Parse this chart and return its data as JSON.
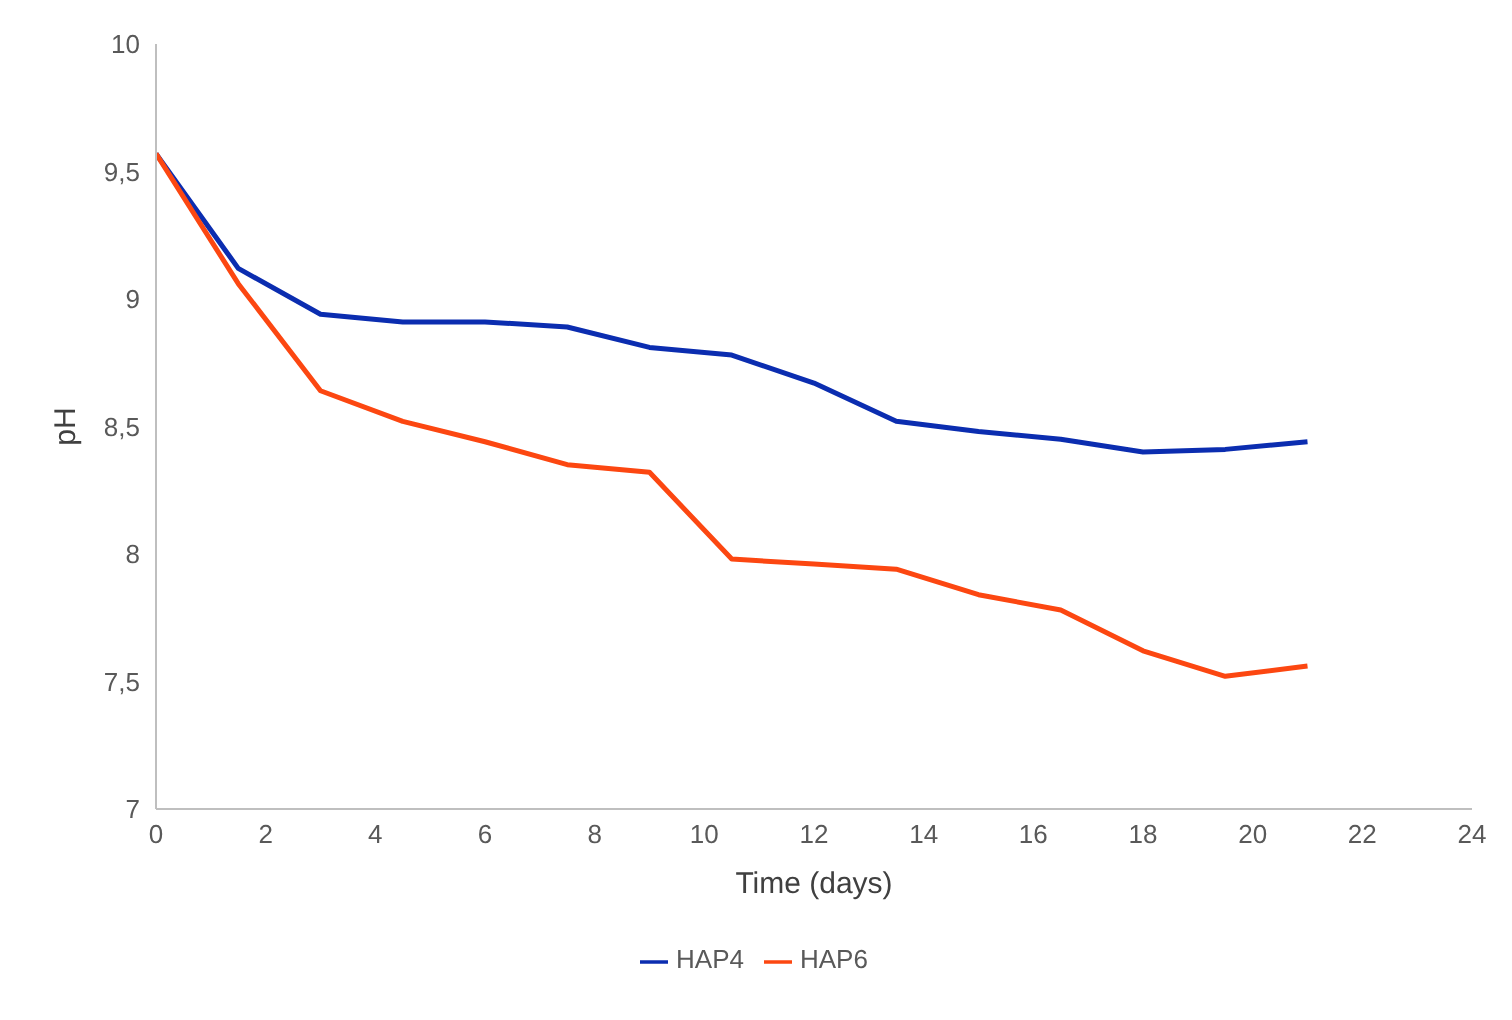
{
  "chart_data": {
    "type": "line",
    "xlabel": "Time (days)",
    "ylabel": "pH",
    "x": [
      0,
      1.5,
      3,
      4.5,
      6,
      7.5,
      9,
      10.5,
      12,
      13.5,
      15,
      16.5,
      18,
      19.5,
      21
    ],
    "series": [
      {
        "name": "HAP4",
        "color": "#0b2db0",
        "values": [
          9.57,
          9.12,
          8.94,
          8.91,
          8.91,
          8.89,
          8.81,
          8.78,
          8.67,
          8.52,
          8.48,
          8.45,
          8.4,
          8.41,
          8.44
        ]
      },
      {
        "name": "HAP6",
        "color": "#fc4711",
        "values": [
          9.57,
          9.06,
          8.64,
          8.52,
          8.44,
          8.35,
          8.32,
          7.98,
          7.96,
          7.94,
          7.84,
          7.78,
          7.62,
          7.52,
          7.56
        ]
      }
    ],
    "xlim": [
      0,
      24
    ],
    "xticks": [
      0,
      2,
      4,
      6,
      8,
      10,
      12,
      14,
      16,
      18,
      20,
      22,
      24
    ],
    "ylim": [
      7,
      10
    ],
    "yticks": [
      {
        "value": 7,
        "label": "7"
      },
      {
        "value": 7.5,
        "label": "7,5"
      },
      {
        "value": 8,
        "label": "8"
      },
      {
        "value": 8.5,
        "label": "8,5"
      },
      {
        "value": 9,
        "label": "9"
      },
      {
        "value": 9.5,
        "label": "9,5"
      },
      {
        "value": 10,
        "label": "10"
      }
    ],
    "grid": false,
    "legend": "bottom",
    "marker": "none",
    "line_style": "solid"
  }
}
